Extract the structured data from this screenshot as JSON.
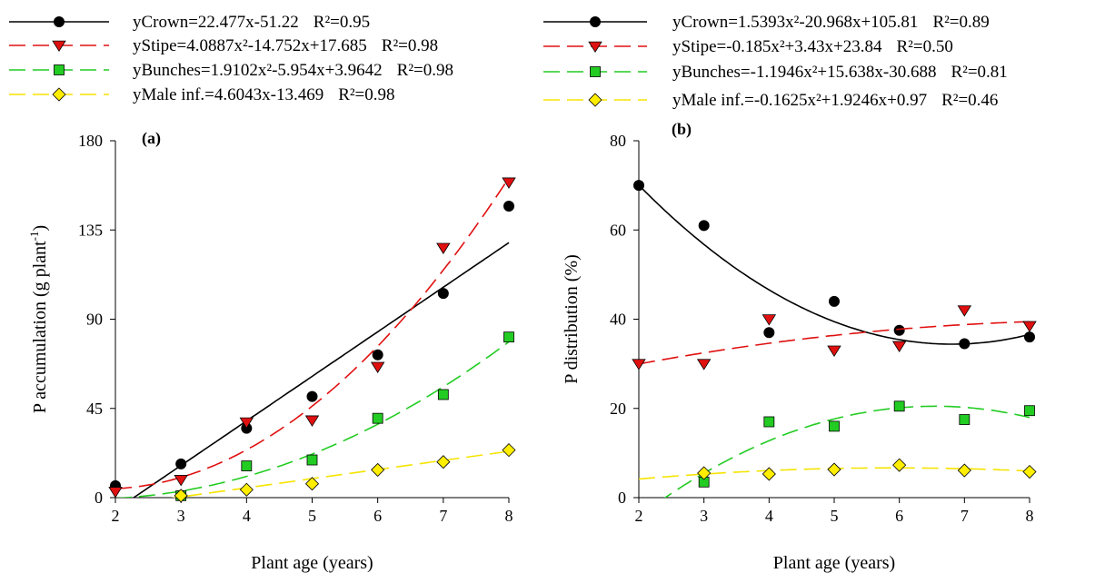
{
  "chart_data": [
    {
      "panel": "(a)",
      "type": "scatter",
      "xlabel": "Plant age (years)",
      "ylabel_main": "P accumulation (g plant",
      "ylabel_sup": "-1",
      "ylabel_end": ")",
      "xlim": [
        2,
        8
      ],
      "ylim": [
        0,
        180
      ],
      "xticks": [
        "2",
        "3",
        "4",
        "5",
        "6",
        "7",
        "8"
      ],
      "yticks": [
        "0",
        "45",
        "90",
        "135",
        "180"
      ],
      "series": [
        {
          "name": "Crown",
          "marker": "circle",
          "color": "#000000",
          "line": "solid",
          "x": [
            2,
            3,
            4,
            5,
            6,
            7,
            8
          ],
          "y": [
            6,
            17,
            35,
            51,
            72,
            103,
            147
          ],
          "fit": {
            "kind": "linear",
            "coef": [
              22.477,
              -51.22
            ]
          },
          "equation": "yCrown=22.477x-51.22",
          "r2": "R²=0.95"
        },
        {
          "name": "Stipe",
          "marker": "triangle-down",
          "color": "#e01010",
          "line": "dashed",
          "x": [
            2,
            3,
            4,
            5,
            6,
            7,
            8
          ],
          "y": [
            3,
            9,
            38,
            39,
            66,
            126,
            159
          ],
          "fit": {
            "kind": "quadratic",
            "coef": [
              4.0887,
              -14.752,
              17.685
            ]
          },
          "equation": "yStipe=4.0887x²-14.752x+17.685",
          "r2": "R²=0.98"
        },
        {
          "name": "Bunches",
          "marker": "square",
          "color": "#22cc22",
          "line": "dashed",
          "x": [
            3,
            4,
            5,
            6,
            7,
            8
          ],
          "y": [
            1,
            16,
            19,
            40,
            52,
            81
          ],
          "fit": {
            "kind": "quadratic",
            "coef": [
              1.9102,
              -5.954,
              3.9642
            ]
          },
          "equation": "yBunches=1.9102x²-5.954x+3.9642",
          "r2": "R²=0.98"
        },
        {
          "name": "Male inf.",
          "marker": "diamond",
          "color": "#ffee00",
          "line": "dashed",
          "x": [
            3,
            4,
            5,
            6,
            7,
            8
          ],
          "y": [
            1,
            4,
            7,
            14,
            18,
            24
          ],
          "fit": {
            "kind": "linear",
            "coef": [
              4.6043,
              -13.469
            ]
          },
          "equation": "yMale inf.=4.6043x-13.469",
          "r2": "R²=0.98"
        }
      ]
    },
    {
      "panel": "(b)",
      "type": "scatter",
      "xlabel": "Plant age (years)",
      "ylabel_main": "P distribution (%)",
      "xlim": [
        2,
        8
      ],
      "ylim": [
        0,
        80
      ],
      "xticks": [
        "2",
        "3",
        "4",
        "5",
        "6",
        "7",
        "8"
      ],
      "yticks": [
        "0",
        "20",
        "40",
        "60",
        "80"
      ],
      "series": [
        {
          "name": "Crown",
          "marker": "circle",
          "color": "#000000",
          "line": "solid",
          "x": [
            2,
            3,
            4,
            5,
            6,
            7,
            8
          ],
          "y": [
            70,
            61,
            37,
            44,
            37.5,
            34.5,
            36
          ],
          "fit": {
            "kind": "quadratic",
            "coef": [
              1.5393,
              -20.968,
              105.81
            ]
          },
          "equation": "yCrown=1.5393x²-20.968x+105.81",
          "r2": "R²=0.89"
        },
        {
          "name": "Stipe",
          "marker": "triangle-down",
          "color": "#e01010",
          "line": "dashed",
          "x": [
            2,
            3,
            4,
            5,
            6,
            7,
            8
          ],
          "y": [
            30,
            30,
            40,
            33,
            34,
            42,
            38.5
          ],
          "fit": {
            "kind": "quadratic",
            "coef": [
              -0.185,
              3.43,
              23.84
            ]
          },
          "equation": "yStipe=-0.185x²+3.43x+23.84",
          "r2": "R²=0.50"
        },
        {
          "name": "Bunches",
          "marker": "square",
          "color": "#22cc22",
          "line": "dashed",
          "x": [
            3,
            4,
            5,
            6,
            7,
            8
          ],
          "y": [
            3.5,
            17,
            16,
            20.5,
            17.5,
            19.5
          ],
          "fit": {
            "kind": "quadratic",
            "coef": [
              -1.1946,
              15.638,
              -30.688
            ]
          },
          "equation": "yBunches=-1.1946x²+15.638x-30.688",
          "r2": "R²=0.81"
        },
        {
          "name": "Male inf.",
          "marker": "diamond",
          "color": "#ffee00",
          "line": "dashed",
          "x": [
            3,
            4,
            5,
            6,
            7,
            8
          ],
          "y": [
            5.5,
            5.3,
            6.3,
            7.3,
            6.1,
            5.8
          ],
          "fit": {
            "kind": "quadratic",
            "coef": [
              -0.1625,
              1.9246,
              0.97
            ]
          },
          "equation": "yMale inf.=-0.1625x²+1.9246x+0.97",
          "r2": "R²=0.46"
        }
      ]
    }
  ]
}
